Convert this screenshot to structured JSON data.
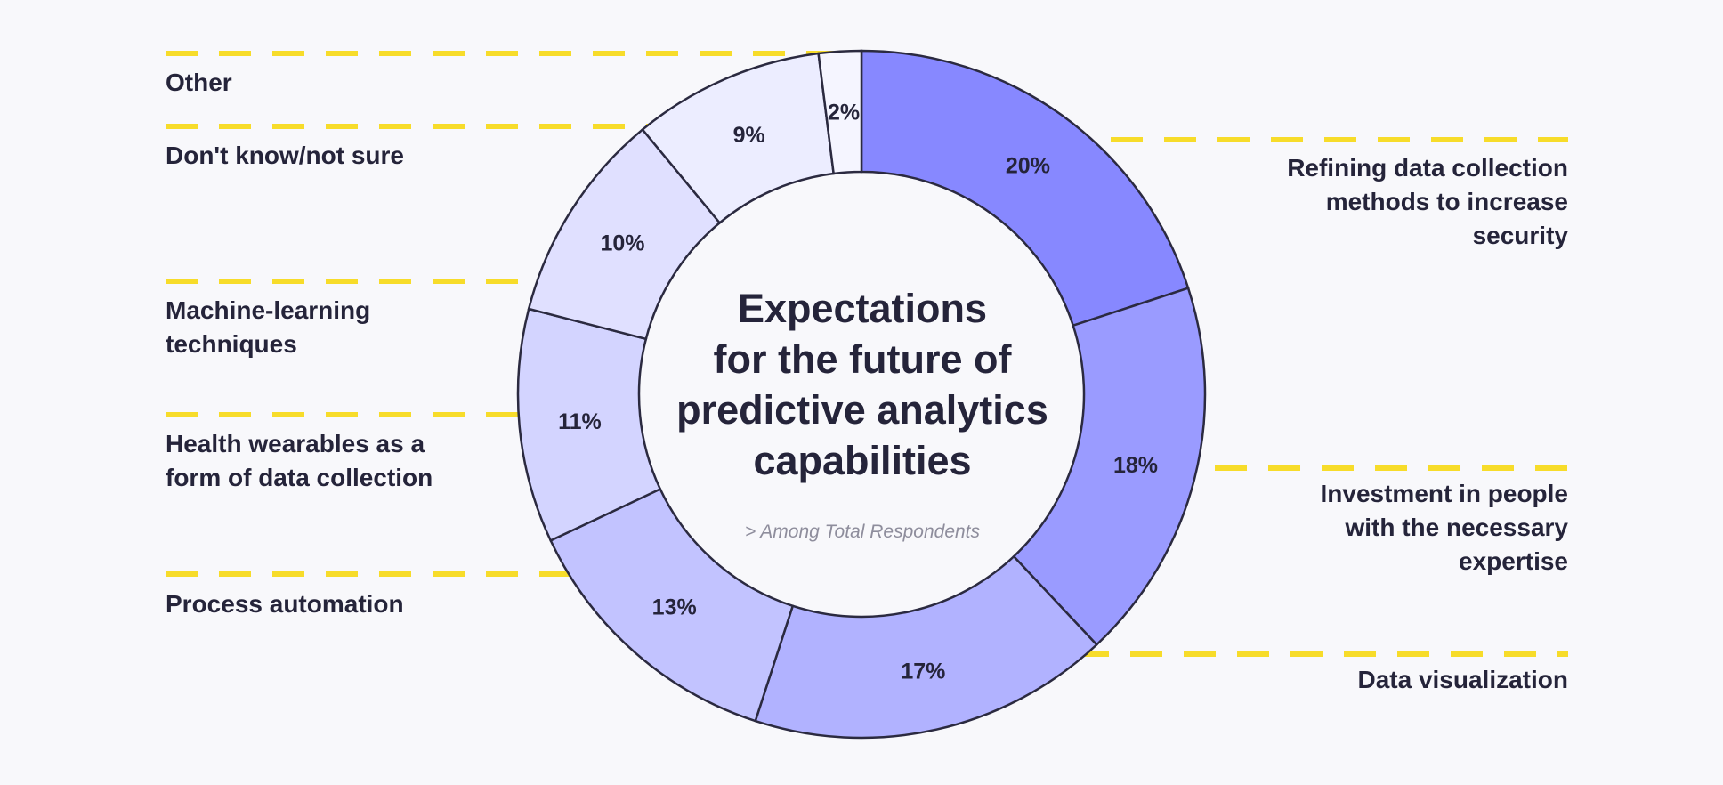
{
  "colors": {
    "background": "#f8f8fb",
    "dash": "#f7dc2a",
    "text": "#25243a",
    "outline": "#2b2a40",
    "subtitle": "#8e8d9c",
    "slices": [
      "#8788ff",
      "#9a9bff",
      "#b1b2ff",
      "#c2c3ff",
      "#d3d4ff",
      "#e0e0ff",
      "#ecedff",
      "#f5f5ff"
    ]
  },
  "center": {
    "title": "Expectations\nfor the future of\npredictive analytics\ncapabilities",
    "subtitle": "> Among Total Respondents"
  },
  "chart_data": {
    "type": "pie",
    "donut": true,
    "slices": [
      {
        "label": "Refining data collection methods to increase security",
        "value": 20,
        "display": "20%"
      },
      {
        "label": "Investment in people with the necessary expertise",
        "value": 18,
        "display": "18%"
      },
      {
        "label": "Data visualization",
        "value": 17,
        "display": "17%"
      },
      {
        "label": "Process automation",
        "value": 13,
        "display": "13%"
      },
      {
        "label": "Health wearables as a form of data collection",
        "value": 11,
        "display": "11%"
      },
      {
        "label": "Machine-learning techniques",
        "value": 10,
        "display": "10%"
      },
      {
        "label": "Don't know/not sure",
        "value": 9,
        "display": "9%"
      },
      {
        "label": "Other",
        "value": 2,
        "display": "2%"
      }
    ]
  },
  "legend_labels": {
    "refining": "Refining data collection\nmethods to increase\nsecurity",
    "investment": "Investment in people\nwith the necessary\nexpertise",
    "visualization": "Data visualization",
    "automation": "Process automation",
    "wearables": "Health wearables as a\nform of data collection",
    "machine_learning": "Machine-learning\ntechniques",
    "dont_know": "Don't know/not sure",
    "other": "Other"
  }
}
